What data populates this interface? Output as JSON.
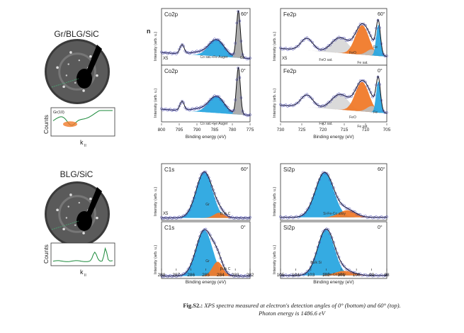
{
  "figure": {
    "stray_mark": "n",
    "left_panels": [
      {
        "title": "Gr/BLG/SiC",
        "inset_label": "Gr(10)",
        "ylabel": "Counts",
        "xlabel": "k",
        "xlabel_sub": "II"
      },
      {
        "title": "BLG/SiC",
        "ylabel": "Counts",
        "xlabel": "k",
        "xlabel_sub": "II"
      }
    ],
    "caption_label": "Fig.S2.:",
    "caption_line1": "XPS spectra measured at electron's detection angles of 0° (bottom) and 60° (top).",
    "caption_line2": "Photon energy is 1486.6 eV"
  },
  "chart_data": [
    {
      "type": "line",
      "panel": "Co2p",
      "title": "Co2p",
      "xlabel": "Binding energy (eV)",
      "ylabel": "Intensity (arb. u.)",
      "xlim": [
        775,
        800
      ],
      "xreversed": true,
      "xticks": [
        800,
        795,
        790,
        785,
        780,
        775
      ],
      "angles": [
        "60°",
        "0°"
      ],
      "scale_label": "X5",
      "component_labels": [
        "Co sat.+Fe Auger",
        "Co"
      ],
      "component_colors": [
        "#a9a9a9",
        "#2aa7e0"
      ]
    },
    {
      "type": "line",
      "panel": "Fe2p",
      "title": "Fe2p",
      "xlabel": "Binding energy (eV)",
      "ylabel": "Intensity (arb. u.)",
      "xlim": [
        705,
        730
      ],
      "xreversed": true,
      "xticks": [
        730,
        725,
        720,
        715,
        710,
        705
      ],
      "angles": [
        "60°",
        "0°"
      ],
      "scale_label": "X5",
      "component_labels": [
        "FeO sat.",
        "FeO",
        "Fe sat.",
        "Fe"
      ],
      "component_colors": [
        "#d8d8d8",
        "#f07a2a",
        "#bdbdbd",
        "#2aa7e0"
      ]
    },
    {
      "type": "line",
      "panel": "C1s",
      "title": "C1s",
      "xlabel": "Binding energy (eV)",
      "ylabel": "Intensity (arb. u.)",
      "xlim": [
        282,
        288
      ],
      "xreversed": true,
      "xticks": [
        288,
        287,
        286,
        285,
        284,
        283,
        282
      ],
      "angles": [
        "60°",
        "0°"
      ],
      "scale_label": "X5",
      "component_labels": [
        "Gr",
        "Bulk C"
      ],
      "component_colors": [
        "#2aa7e0",
        "#f07a2a"
      ]
    },
    {
      "type": "line",
      "panel": "Si2p",
      "title": "Si2p",
      "xlabel": "Binding energy (eV)",
      "ylabel": "Intensity (arb. u.)",
      "xlim": [
        98,
        105
      ],
      "xreversed": true,
      "xticks": [
        105,
        104,
        103,
        102,
        101,
        100,
        99,
        98
      ],
      "angles": [
        "60°",
        "0°"
      ],
      "component_labels": [
        "Bulk Si",
        "Si-Fe-Co alloy"
      ],
      "component_colors": [
        "#2aa7e0",
        "#f07a2a"
      ]
    }
  ]
}
